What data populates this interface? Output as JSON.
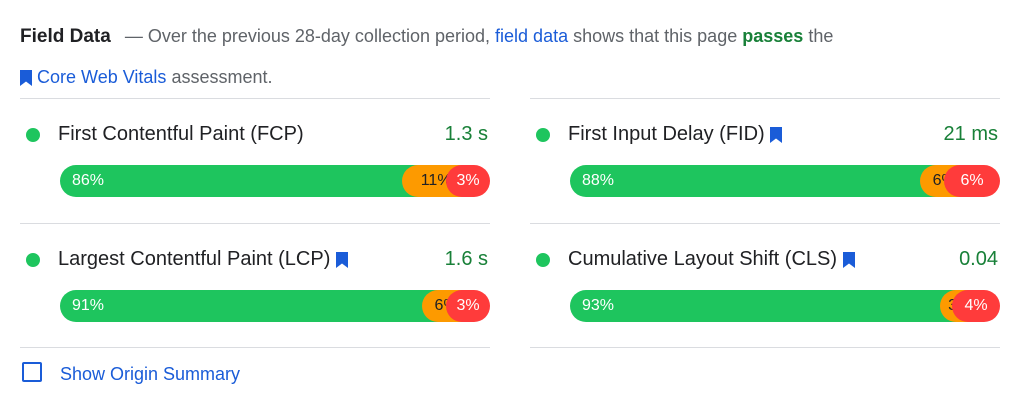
{
  "intro": {
    "title": "Field Data",
    "dash": "—",
    "text_before_link": "Over the previous 28-day collection period,",
    "field_data_link": "field data",
    "text_middle": "shows that this page",
    "pass_word": "passes",
    "text_after_pass": "the",
    "cwv_link": "Core Web Vitals",
    "text_end": "assessment."
  },
  "metrics": [
    {
      "name": "First Contentful Paint (FCP)",
      "value": "1.3 s",
      "good": "86%",
      "good_pct": 86,
      "ni": "11%",
      "ni_pct": 11,
      "poor": "3%",
      "poor_pct": 3,
      "bookmark": false
    },
    {
      "name": "First Input Delay (FID)",
      "value": "21 ms",
      "good": "88%",
      "good_pct": 88,
      "ni": "6%",
      "ni_pct": 6,
      "poor": "6%",
      "poor_pct": 6,
      "bookmark": true
    },
    {
      "name": "Largest Contentful Paint (LCP)",
      "value": "1.6 s",
      "good": "91%",
      "good_pct": 91,
      "ni": "6%",
      "ni_pct": 6,
      "poor": "3%",
      "poor_pct": 3,
      "bookmark": true
    },
    {
      "name": "Cumulative Layout Shift (CLS)",
      "value": "0.04",
      "good": "93%",
      "good_pct": 93,
      "ni": "3%",
      "ni_pct": 3,
      "poor": "4%",
      "poor_pct": 4,
      "bookmark": true
    }
  ],
  "origin_summary_label": "Show Origin Summary",
  "colors": {
    "good": "#1ec55e",
    "needs_improvement": "#fd9a00",
    "poor": "#ff3b3b",
    "link": "#1a5cd8",
    "pass_text": "#188038"
  }
}
